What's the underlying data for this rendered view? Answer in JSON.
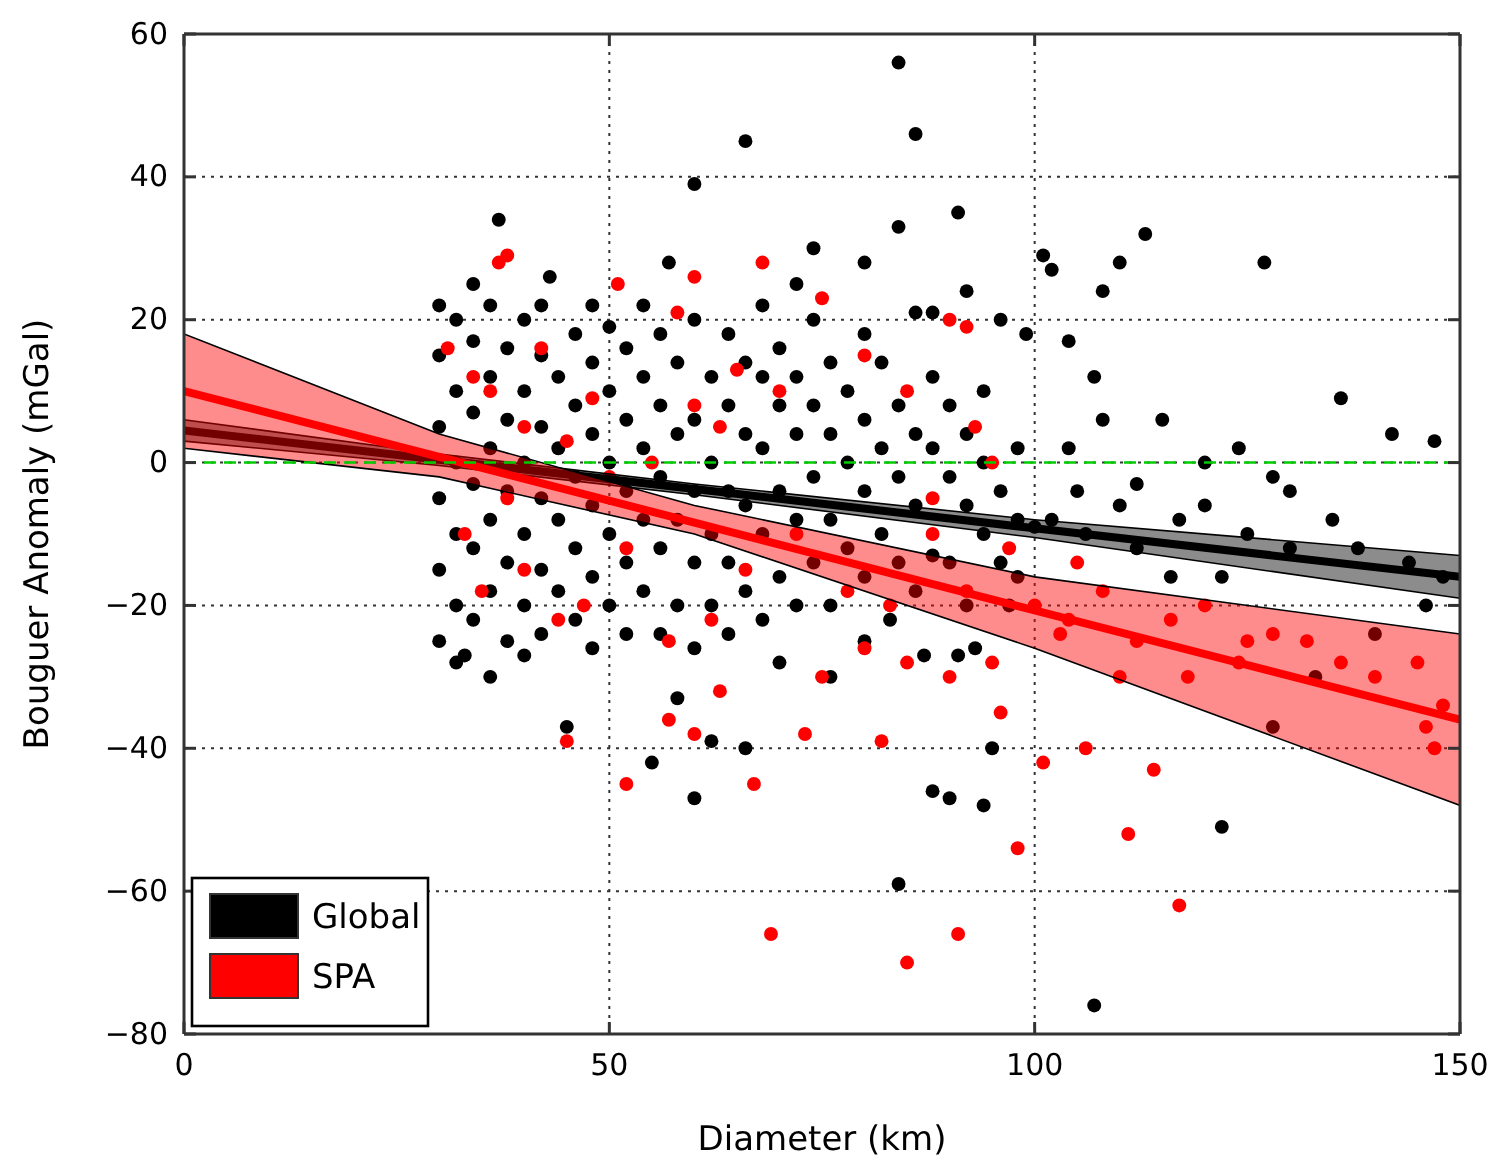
{
  "chart_data": {
    "type": "scatter",
    "xlabel": "Diameter (km)",
    "ylabel": "Bouguer Anomaly (mGal)",
    "xlim": [
      0,
      150
    ],
    "ylim": [
      -80,
      60
    ],
    "xticks": [
      0,
      50,
      100,
      150
    ],
    "yticks": [
      {
        "value": -80,
        "label": "−80"
      },
      {
        "value": -60,
        "label": "−60"
      },
      {
        "value": -40,
        "label": "−40"
      },
      {
        "value": -20,
        "label": "−20"
      },
      0,
      20,
      40,
      60
    ],
    "grid": true,
    "legend": "bottom left",
    "marker": "circle",
    "ref_lines": [
      {
        "axis": "y",
        "value": 0,
        "color": "#00cc00",
        "line_style": "dashed"
      }
    ],
    "series": [
      {
        "name": "Global",
        "color": "#000000",
        "x": [
          84,
          86,
          66,
          60,
          84,
          80,
          91,
          101,
          110,
          113,
          127,
          102,
          108,
          136,
          142,
          147,
          128,
          112,
          120,
          115,
          107,
          104,
          99,
          96,
          92,
          88,
          86,
          37,
          57,
          72,
          74,
          43,
          107,
          84,
          122,
          128,
          95,
          88,
          90,
          94,
          60,
          55,
          66,
          62,
          45,
          36,
          33,
          40,
          58,
          70,
          76,
          133,
          140,
          146,
          122,
          130,
          135,
          125,
          117,
          110,
          105,
          100,
          98,
          97,
          93,
          91,
          87,
          83,
          80,
          30,
          30,
          30,
          30,
          30,
          30,
          32,
          32,
          32,
          32,
          32,
          32,
          34,
          34,
          34,
          34,
          34,
          34,
          36,
          36,
          36,
          36,
          36,
          38,
          38,
          38,
          38,
          38,
          40,
          40,
          40,
          40,
          40,
          42,
          42,
          42,
          42,
          42,
          42,
          44,
          44,
          44,
          44,
          46,
          46,
          46,
          46,
          46,
          48,
          48,
          48,
          48,
          48,
          48,
          50,
          50,
          50,
          50,
          50,
          52,
          52,
          52,
          52,
          52,
          54,
          54,
          54,
          54,
          54,
          56,
          56,
          56,
          56,
          56,
          58,
          58,
          58,
          58,
          60,
          60,
          60,
          60,
          60,
          62,
          62,
          62,
          62,
          64,
          64,
          64,
          64,
          64,
          66,
          66,
          66,
          66,
          68,
          68,
          68,
          68,
          68,
          70,
          70,
          70,
          70,
          72,
          72,
          72,
          72,
          74,
          74,
          74,
          74,
          76,
          76,
          76,
          76,
          78,
          78,
          78,
          80,
          80,
          80,
          80,
          82,
          82,
          82,
          84,
          84,
          84,
          86,
          86,
          86,
          88,
          88,
          88,
          90,
          90,
          90,
          92,
          92,
          92,
          94,
          94,
          94,
          96,
          96,
          98,
          98,
          102,
          104,
          106,
          108,
          112,
          116,
          120,
          124,
          130,
          138,
          144,
          148
        ],
        "values": [
          56,
          46,
          45,
          39,
          33,
          28,
          35,
          29,
          28,
          32,
          28,
          27,
          24,
          9,
          4,
          3,
          -2,
          -3,
          0,
          6,
          12,
          17,
          18,
          20,
          24,
          21,
          21,
          34,
          28,
          25,
          30,
          26,
          -76,
          -59,
          -51,
          -37,
          -40,
          -46,
          -47,
          -48,
          -47,
          -42,
          -40,
          -39,
          -37,
          -30,
          -27,
          -27,
          -33,
          -28,
          -30,
          -30,
          -24,
          -20,
          -16,
          -12,
          -8,
          -10,
          -8,
          -6,
          -4,
          -9,
          -16,
          -20,
          -26,
          -27,
          -27,
          -22,
          -25,
          -25,
          -15,
          -5,
          5,
          15,
          22,
          -28,
          -20,
          -10,
          0,
          10,
          20,
          -22,
          -12,
          -3,
          7,
          17,
          25,
          -18,
          -8,
          2,
          12,
          22,
          -25,
          -14,
          -4,
          6,
          16,
          -20,
          -10,
          0,
          10,
          20,
          -24,
          -15,
          -5,
          5,
          15,
          22,
          -18,
          -8,
          2,
          12,
          -22,
          -12,
          -2,
          8,
          18,
          -26,
          -16,
          -6,
          4,
          14,
          22,
          -20,
          -10,
          0,
          10,
          19,
          -24,
          -14,
          -4,
          6,
          16,
          -18,
          -8,
          2,
          12,
          22,
          -24,
          -12,
          -2,
          8,
          18,
          -20,
          -8,
          4,
          14,
          -26,
          -14,
          -4,
          6,
          20,
          -20,
          -10,
          0,
          12,
          -24,
          -14,
          -4,
          8,
          18,
          -18,
          -6,
          4,
          14,
          -22,
          -10,
          2,
          12,
          22,
          -16,
          -4,
          8,
          16,
          -20,
          -8,
          4,
          12,
          -14,
          -2,
          8,
          20,
          -20,
          -8,
          4,
          14,
          -12,
          0,
          10,
          -16,
          -4,
          6,
          18,
          -10,
          2,
          14,
          -14,
          -2,
          8,
          -18,
          -6,
          4,
          -13,
          2,
          12,
          -14,
          -2,
          8,
          -6,
          4,
          -20,
          -10,
          0,
          10,
          -4,
          -14,
          2,
          -8,
          -8,
          2,
          -10,
          6,
          -12,
          -16,
          -6,
          2,
          -4,
          -12,
          -14,
          -16
        ]
      },
      {
        "name": "SPA",
        "color": "#ff0000",
        "x": [
          37,
          38,
          51,
          60,
          68,
          90,
          92,
          75,
          58,
          42,
          48,
          34,
          31,
          36,
          40,
          45,
          55,
          60,
          65,
          70,
          80,
          85,
          88,
          93,
          95,
          63,
          50,
          38,
          33,
          35,
          40,
          44,
          47,
          52,
          57,
          62,
          66,
          72,
          78,
          83,
          88,
          92,
          97,
          100,
          104,
          108,
          112,
          116,
          120,
          124,
          128,
          132,
          136,
          140,
          145,
          148,
          146,
          147,
          125,
          118,
          110,
          105,
          103,
          95,
          90,
          85,
          80,
          45,
          52,
          67,
          60,
          57,
          63,
          73,
          82,
          101,
          106,
          114,
          111,
          117,
          98,
          91,
          85,
          69,
          96,
          75
        ],
        "values": [
          28,
          29,
          25,
          26,
          28,
          20,
          19,
          23,
          21,
          16,
          9,
          12,
          16,
          10,
          5,
          3,
          0,
          8,
          13,
          10,
          15,
          10,
          -5,
          5,
          0,
          5,
          -2,
          -5,
          -10,
          -18,
          -15,
          -22,
          -20,
          -12,
          -25,
          -22,
          -15,
          -10,
          -18,
          -20,
          -10,
          -18,
          -12,
          -20,
          -22,
          -18,
          -25,
          -22,
          -20,
          -28,
          -24,
          -25,
          -28,
          -30,
          -28,
          -34,
          -37,
          -40,
          -25,
          -30,
          -30,
          -14,
          -24,
          -28,
          -30,
          -28,
          -26,
          -39,
          -45,
          -45,
          -38,
          -36,
          -32,
          -38,
          -39,
          -42,
          -40,
          -43,
          -52,
          -62,
          -54,
          -66,
          -70,
          -66,
          -35,
          -30
        ]
      },
      {
        "type": "line",
        "marker": "none",
        "color": "#000000",
        "x": [
          0,
          30,
          60,
          100,
          150
        ],
        "values": [
          4.5,
          0.4,
          -3.7,
          -9.2,
          -16
        ],
        "lower": [
          3,
          -0.4,
          -4.5,
          -10.5,
          -19
        ],
        "upper": [
          6,
          1.2,
          -3,
          -8,
          -13
        ]
      },
      {
        "type": "line",
        "marker": "none",
        "color": "#ff0000",
        "x": [
          0,
          30,
          60,
          100,
          150
        ],
        "values": [
          10,
          0.8,
          -8.4,
          -20.7,
          -36
        ],
        "lower": [
          2,
          -2,
          -10,
          -26,
          -48
        ],
        "upper": [
          18,
          4,
          -6,
          -16,
          -24
        ]
      }
    ]
  }
}
